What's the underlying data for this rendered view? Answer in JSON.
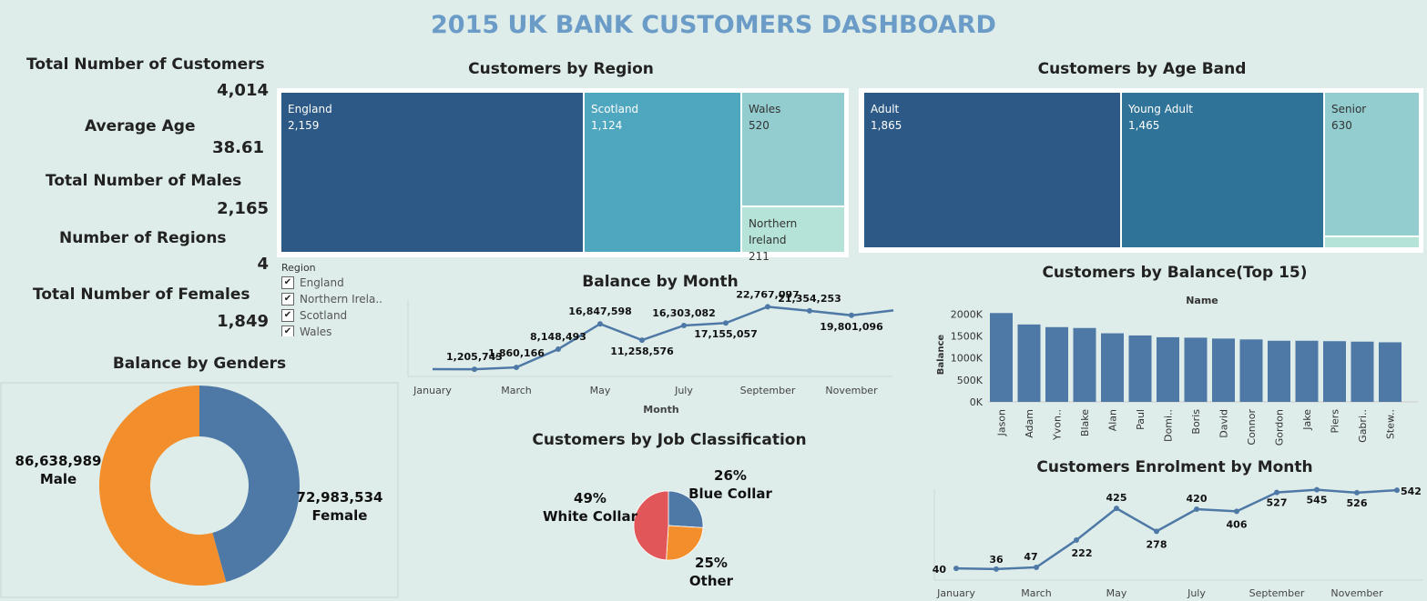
{
  "dashboard_title": "2015 UK BANK CUSTOMERS DASHBOARD",
  "kpis": [
    {
      "label": "Total Number of Customers",
      "value": "4,014"
    },
    {
      "label": "Average Age",
      "value": "38.61"
    },
    {
      "label": "Total Number of Males",
      "value": "2,165"
    },
    {
      "label": "Number of Regions",
      "value": "4"
    },
    {
      "label": "Total Number of Females",
      "value": "1,849"
    }
  ],
  "filter": {
    "title": "Region",
    "items": [
      "England",
      "Northern Irela..",
      "Scotland",
      "Wales"
    ]
  },
  "colors": {
    "background": "#deedea",
    "title": "#6b9bc7",
    "blue": "#4e79a7",
    "orange": "#f28e2b",
    "red": "#e15759",
    "tile_dark": "#2c5985",
    "tile_mid": "#4ea6bf",
    "tile_light": "#93cdd0",
    "tile_lightest": "#b5e3d8"
  },
  "chart_data": [
    {
      "id": "region",
      "type": "treemap",
      "title": "Customers by Region",
      "items": [
        {
          "label": "England",
          "value": 2159,
          "value_text": "2,159"
        },
        {
          "label": "Scotland",
          "value": 1124,
          "value_text": "1,124"
        },
        {
          "label": "Wales",
          "value": 520,
          "value_text": "520"
        },
        {
          "label": "Northern Ireland",
          "value": 211,
          "value_text": "211"
        }
      ]
    },
    {
      "id": "ageband",
      "type": "treemap",
      "title": "Customers by Age Band",
      "items": [
        {
          "label": "Adult",
          "value": 1865,
          "value_text": "1,865"
        },
        {
          "label": "Young Adult",
          "value": 1465,
          "value_text": "1,465"
        },
        {
          "label": "Senior",
          "value": 630,
          "value_text": "630"
        }
      ]
    },
    {
      "id": "balance_month",
      "type": "line",
      "title": "Balance by Month",
      "xlabel": "Month",
      "x_ticks": [
        "January",
        "March",
        "May",
        "July",
        "September",
        "November"
      ],
      "months": [
        "January",
        "February",
        "March",
        "April",
        "May",
        "June",
        "July",
        "August",
        "September",
        "October",
        "November",
        "December"
      ],
      "values": [
        1250000,
        1205743,
        1860166,
        8148493,
        16847598,
        11258576,
        16303082,
        17155057,
        22767097,
        21354253,
        19801096,
        21500000
      ],
      "labels": [
        "",
        "1,205,743",
        "1,860,166",
        "8,148,493",
        "16,847,598",
        "11,258,576",
        "16,303,082",
        "17,155,057",
        "22,767,097",
        "21,354,253",
        "19,801,096",
        ""
      ],
      "ylim": [
        0,
        23500000
      ]
    },
    {
      "id": "balance_top15",
      "type": "bar",
      "title": "Customers by Balance(Top 15)",
      "xlabel": "Name",
      "ylabel": "Balance",
      "y_ticks": [
        "2000K",
        "1500K",
        "1000K",
        "500K",
        "0K"
      ],
      "y_tick_values": [
        2000000,
        1500000,
        1000000,
        500000,
        0
      ],
      "ylim": [
        0,
        2150000
      ],
      "categories": [
        "Jason",
        "Adam",
        "Yvon..",
        "Blake",
        "Alan",
        "Paul",
        "Domi..",
        "Boris",
        "David",
        "Connor",
        "Gordon",
        "Jake",
        "Piers",
        "Gabri..",
        "Stew.."
      ],
      "values": [
        2020000,
        1760000,
        1700000,
        1680000,
        1560000,
        1510000,
        1470000,
        1460000,
        1440000,
        1420000,
        1390000,
        1390000,
        1380000,
        1370000,
        1355000
      ]
    },
    {
      "id": "gender",
      "type": "pie",
      "title": "Balance by Genders",
      "slices": [
        {
          "label": "Female",
          "value": 72983534,
          "value_text": "72,983,534"
        },
        {
          "label": "Male",
          "value": 86638989,
          "value_text": "86,638,989"
        }
      ]
    },
    {
      "id": "job",
      "type": "pie",
      "title": "Customers by Job Classification",
      "slices": [
        {
          "label": "Blue Collar",
          "value": 26,
          "pct": "26%"
        },
        {
          "label": "Other",
          "value": 25,
          "pct": "25%"
        },
        {
          "label": "White Collar",
          "value": 49,
          "pct": "49%"
        }
      ]
    },
    {
      "id": "enrolment",
      "type": "line",
      "title": "Customers Enrolment by Month",
      "x_ticks": [
        "January",
        "March",
        "May",
        "July",
        "September",
        "November"
      ],
      "months": [
        "January",
        "February",
        "March",
        "April",
        "May",
        "June",
        "July",
        "August",
        "September",
        "October",
        "November",
        "December"
      ],
      "values": [
        40,
        36,
        47,
        222,
        425,
        278,
        420,
        406,
        527,
        545,
        526,
        542
      ],
      "labels": [
        "40",
        "36",
        "47",
        "222",
        "425",
        "278",
        "420",
        "406",
        "527",
        "545",
        "526",
        "542"
      ],
      "ylim": [
        0,
        560
      ]
    }
  ]
}
